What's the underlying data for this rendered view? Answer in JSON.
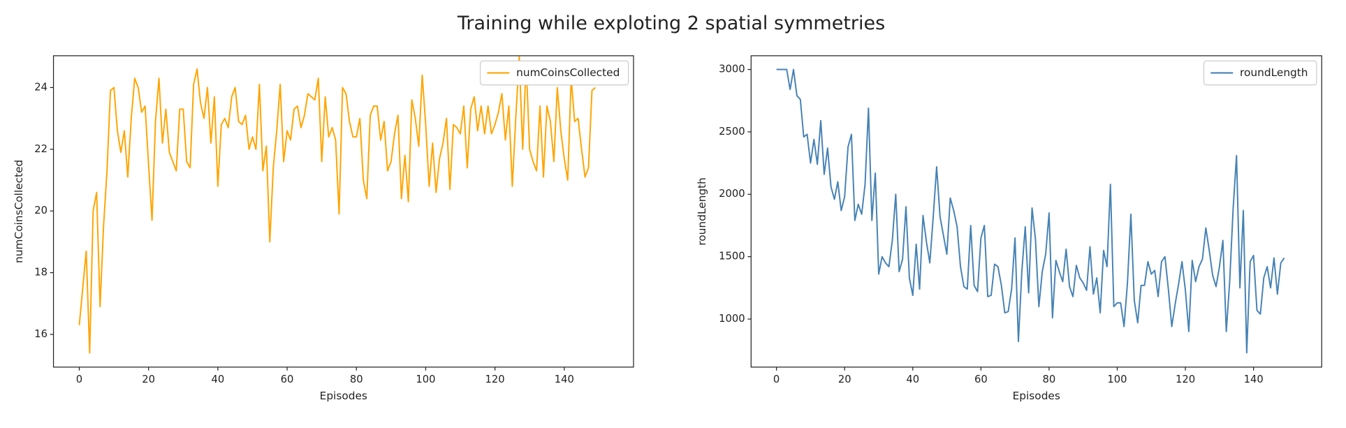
{
  "title": "Training while exploting 2 spatial symmetries",
  "chart_data": [
    {
      "type": "line",
      "x_label": "Episodes",
      "y_label": "numCoinsCollected",
      "legend": "upper right",
      "x": [
        0,
        1,
        2,
        3,
        4,
        5,
        6,
        7,
        8,
        9,
        10,
        11,
        12,
        13,
        14,
        15,
        16,
        17,
        18,
        19,
        20,
        21,
        22,
        23,
        24,
        25,
        26,
        27,
        28,
        29,
        30,
        31,
        32,
        33,
        34,
        35,
        36,
        37,
        38,
        39,
        40,
        41,
        42,
        43,
        44,
        45,
        46,
        47,
        48,
        49,
        50,
        51,
        52,
        53,
        54,
        55,
        56,
        57,
        58,
        59,
        60,
        61,
        62,
        63,
        64,
        65,
        66,
        67,
        68,
        69,
        70,
        71,
        72,
        73,
        74,
        75,
        76,
        77,
        78,
        79,
        80,
        81,
        82,
        83,
        84,
        85,
        86,
        87,
        88,
        89,
        90,
        91,
        92,
        93,
        94,
        95,
        96,
        97,
        98,
        99,
        100,
        101,
        102,
        103,
        104,
        105,
        106,
        107,
        108,
        109,
        110,
        111,
        112,
        113,
        114,
        115,
        116,
        117,
        118,
        119,
        120,
        121,
        122,
        123,
        124,
        125,
        126,
        127,
        128,
        129,
        130,
        131,
        132,
        133,
        134,
        135,
        136,
        137,
        138,
        139,
        140,
        141,
        142,
        143,
        144,
        145,
        146,
        147,
        148,
        149
      ],
      "series": [
        {
          "name": "numCoinsCollected",
          "color": "#ffa500",
          "values": [
            16.3,
            17.5,
            18.7,
            15.4,
            20.0,
            20.6,
            16.9,
            19.5,
            21.3,
            23.9,
            24.0,
            22.6,
            21.9,
            22.6,
            21.1,
            23.0,
            24.3,
            24.0,
            23.2,
            23.4,
            21.5,
            19.7,
            22.9,
            24.3,
            22.2,
            23.3,
            21.9,
            21.6,
            21.3,
            23.3,
            23.3,
            21.6,
            21.4,
            24.1,
            24.6,
            23.5,
            23.0,
            24.0,
            22.2,
            23.7,
            20.8,
            22.8,
            23.0,
            22.7,
            23.7,
            24.0,
            22.9,
            22.8,
            23.1,
            22.0,
            22.4,
            22.0,
            24.1,
            21.3,
            22.1,
            19.0,
            21.4,
            22.6,
            24.1,
            21.6,
            22.6,
            22.3,
            23.3,
            23.4,
            22.7,
            23.1,
            23.8,
            23.7,
            23.6,
            24.3,
            21.6,
            23.7,
            22.4,
            22.7,
            22.3,
            19.9,
            24.0,
            23.8,
            22.9,
            22.4,
            22.4,
            23.0,
            21.0,
            20.4,
            23.1,
            23.4,
            23.4,
            22.3,
            22.9,
            21.3,
            21.6,
            22.5,
            23.1,
            20.4,
            21.8,
            20.3,
            23.6,
            23.0,
            22.1,
            24.4,
            22.8,
            20.8,
            22.2,
            20.6,
            21.7,
            22.2,
            23.0,
            20.7,
            22.8,
            22.7,
            22.5,
            23.4,
            21.4,
            23.3,
            23.7,
            22.6,
            23.4,
            22.5,
            23.4,
            22.5,
            22.8,
            23.2,
            23.8,
            22.3,
            23.4,
            20.8,
            23.0,
            25.0,
            22.0,
            24.8,
            22.0,
            21.6,
            21.3,
            23.4,
            21.1,
            23.4,
            22.9,
            21.6,
            24.0,
            22.6,
            21.7,
            21.0,
            24.3,
            22.9,
            23.0,
            22.0,
            21.1,
            21.4,
            23.9,
            24.0
          ]
        }
      ],
      "xlim": [
        -7.45,
        160
      ],
      "ylim": [
        14.94,
        25.03
      ],
      "xticks": [
        0,
        20,
        40,
        60,
        80,
        100,
        120,
        140
      ],
      "yticks": [
        16,
        18,
        20,
        22,
        24
      ]
    },
    {
      "type": "line",
      "x_label": "Episodes",
      "y_label": "roundLength",
      "legend": "upper right",
      "x": [
        0,
        1,
        2,
        3,
        4,
        5,
        6,
        7,
        8,
        9,
        10,
        11,
        12,
        13,
        14,
        15,
        16,
        17,
        18,
        19,
        20,
        21,
        22,
        23,
        24,
        25,
        26,
        27,
        28,
        29,
        30,
        31,
        32,
        33,
        34,
        35,
        36,
        37,
        38,
        39,
        40,
        41,
        42,
        43,
        44,
        45,
        46,
        47,
        48,
        49,
        50,
        51,
        52,
        53,
        54,
        55,
        56,
        57,
        58,
        59,
        60,
        61,
        62,
        63,
        64,
        65,
        66,
        67,
        68,
        69,
        70,
        71,
        72,
        73,
        74,
        75,
        76,
        77,
        78,
        79,
        80,
        81,
        82,
        83,
        84,
        85,
        86,
        87,
        88,
        89,
        90,
        91,
        92,
        93,
        94,
        95,
        96,
        97,
        98,
        99,
        100,
        101,
        102,
        103,
        104,
        105,
        106,
        107,
        108,
        109,
        110,
        111,
        112,
        113,
        114,
        115,
        116,
        117,
        118,
        119,
        120,
        121,
        122,
        123,
        124,
        125,
        126,
        127,
        128,
        129,
        130,
        131,
        132,
        133,
        134,
        135,
        136,
        137,
        138,
        139,
        140,
        141,
        142,
        143,
        144,
        145,
        146,
        147,
        148,
        149
      ],
      "series": [
        {
          "name": "roundLength",
          "color": "#4682b4",
          "values": [
            3000,
            3000,
            3000,
            3000,
            2840,
            3000,
            2790,
            2760,
            2460,
            2480,
            2250,
            2440,
            2240,
            2590,
            2160,
            2370,
            2060,
            1960,
            2100,
            1870,
            1980,
            2380,
            2480,
            1790,
            1920,
            1840,
            2080,
            2690,
            1790,
            2170,
            1360,
            1500,
            1450,
            1420,
            1630,
            2000,
            1380,
            1480,
            1900,
            1330,
            1190,
            1600,
            1240,
            1830,
            1620,
            1450,
            1820,
            2220,
            1820,
            1670,
            1520,
            1970,
            1870,
            1740,
            1420,
            1260,
            1240,
            1750,
            1270,
            1220,
            1650,
            1750,
            1180,
            1190,
            1440,
            1420,
            1270,
            1050,
            1060,
            1240,
            1650,
            820,
            1380,
            1740,
            1210,
            1890,
            1640,
            1100,
            1380,
            1520,
            1850,
            1010,
            1470,
            1380,
            1300,
            1560,
            1260,
            1180,
            1430,
            1330,
            1290,
            1230,
            1580,
            1200,
            1330,
            1050,
            1550,
            1420,
            2080,
            1100,
            1130,
            1130,
            940,
            1290,
            1840,
            1150,
            970,
            1270,
            1270,
            1460,
            1360,
            1390,
            1180,
            1460,
            1500,
            1240,
            940,
            1120,
            1280,
            1460,
            1230,
            900,
            1470,
            1300,
            1420,
            1480,
            1730,
            1550,
            1350,
            1260,
            1420,
            1630,
            900,
            1300,
            1880,
            2310,
            1250,
            1870,
            730,
            1460,
            1510,
            1070,
            1040,
            1330,
            1420,
            1250,
            1490,
            1200,
            1450,
            1490
          ]
        }
      ],
      "xlim": [
        -7.45,
        160
      ],
      "ylim": [
        615,
        3110
      ],
      "xticks": [
        0,
        20,
        40,
        60,
        80,
        100,
        120,
        140
      ],
      "yticks": [
        1000,
        1500,
        2000,
        2500,
        3000
      ]
    }
  ]
}
